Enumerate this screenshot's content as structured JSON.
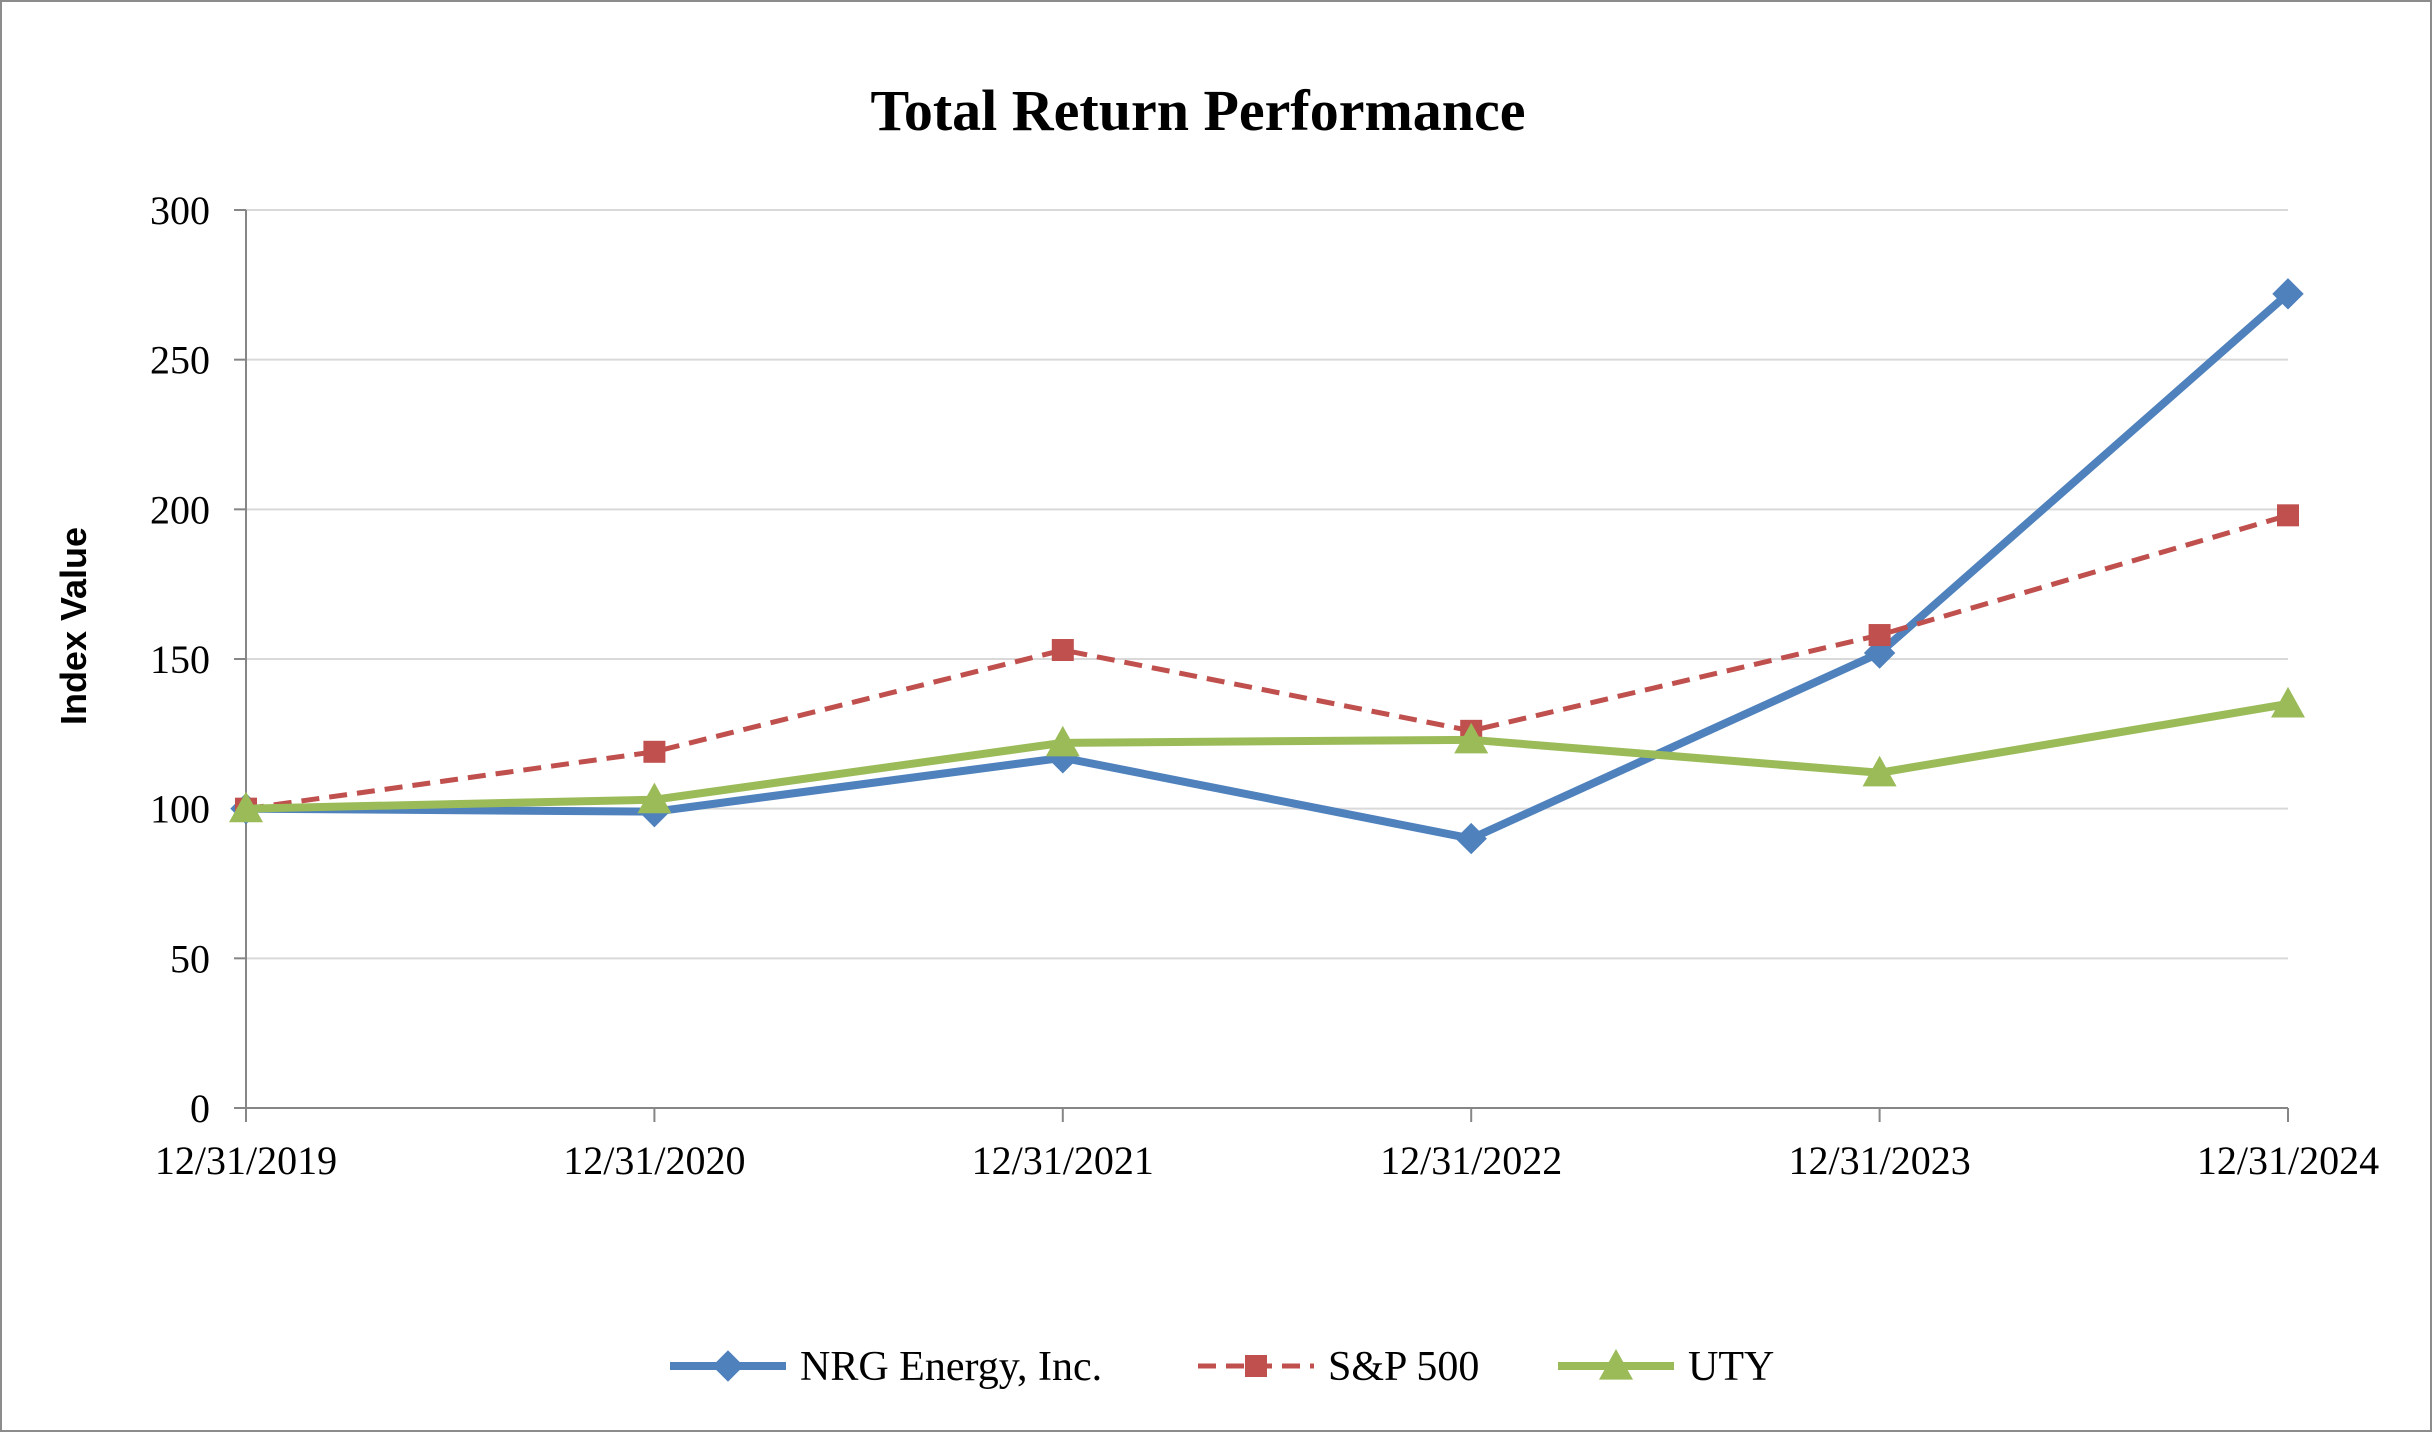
{
  "chart_data": {
    "type": "line",
    "title": "Total Return Performance",
    "xlabel": "",
    "ylabel": "Index Value",
    "categories": [
      "12/31/2019",
      "12/31/2020",
      "12/31/2021",
      "12/31/2022",
      "12/31/2023",
      "12/31/2024"
    ],
    "ylim": [
      0,
      300
    ],
    "yticks": [
      "0",
      "50",
      "100",
      "150",
      "200",
      "250",
      "300"
    ],
    "grid": true,
    "legend_position": "bottom",
    "series": [
      {
        "name": "NRG Energy, Inc.",
        "values": [
          100,
          99,
          117,
          90,
          152,
          272
        ],
        "color": "#4f81bd",
        "marker": "diamond",
        "dash": "solid"
      },
      {
        "name": "S&P 500",
        "values": [
          100,
          119,
          153,
          126,
          158,
          198
        ],
        "color": "#c0504d",
        "marker": "square",
        "dash": "dashed"
      },
      {
        "name": "UTY",
        "values": [
          100,
          103,
          122,
          123,
          112,
          135
        ],
        "color": "#9bbb59",
        "marker": "triangle",
        "dash": "solid"
      }
    ]
  }
}
